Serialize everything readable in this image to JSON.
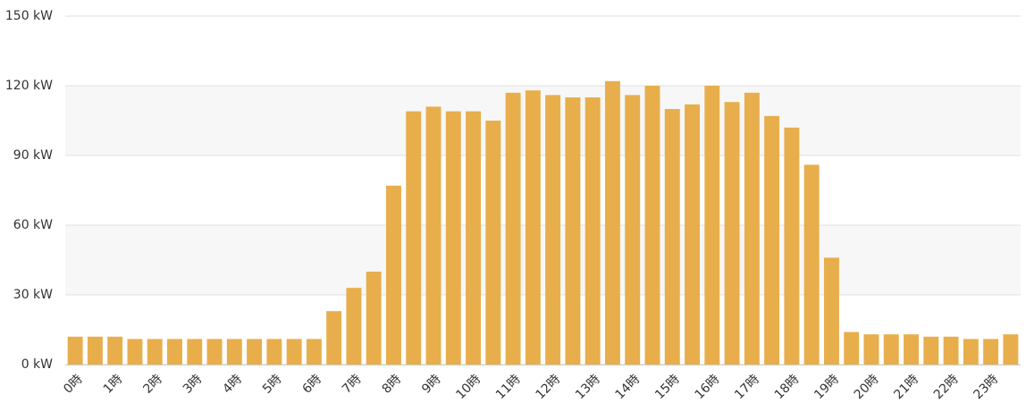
{
  "chart_data": {
    "type": "bar",
    "categories": [
      "0時",
      null,
      "1時",
      null,
      "2時",
      null,
      "3時",
      null,
      "4時",
      null,
      "5時",
      null,
      "6時",
      null,
      "7時",
      null,
      "8時",
      null,
      "9時",
      null,
      "10時",
      null,
      "11時",
      null,
      "12時",
      null,
      "13時",
      null,
      "14時",
      null,
      "15時",
      null,
      "16時",
      null,
      "17時",
      null,
      "18時",
      null,
      "19時",
      null,
      "20時",
      null,
      "21時",
      null,
      "22時",
      null,
      "23時",
      null
    ],
    "values": [
      12,
      12,
      12,
      11,
      11,
      11,
      11,
      11,
      11,
      11,
      11,
      11,
      11,
      23,
      33,
      40,
      77,
      109,
      111,
      109,
      109,
      105,
      117,
      118,
      116,
      115,
      115,
      122,
      116,
      120,
      110,
      112,
      120,
      113,
      117,
      107,
      102,
      86,
      46,
      14,
      13,
      13,
      13,
      12,
      12,
      11,
      11,
      13
    ],
    "color": "#e8ae4c",
    "ylim": [
      0,
      150
    ],
    "yticks": [
      {
        "value": 0,
        "label": "0 kW"
      },
      {
        "value": 30,
        "label": "30 kW"
      },
      {
        "value": 60,
        "label": "60 kW"
      },
      {
        "value": 90,
        "label": "90 kW"
      },
      {
        "value": 120,
        "label": "120 kW"
      },
      {
        "value": 150,
        "label": "150 kW"
      }
    ],
    "grid": true
  }
}
